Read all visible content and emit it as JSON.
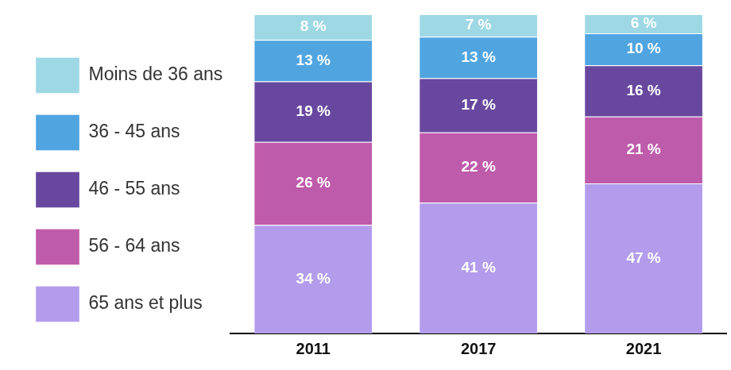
{
  "chart_data": {
    "type": "bar",
    "stacked": true,
    "data_labels": true,
    "legend": "left",
    "tick_labels": "x",
    "grid": false,
    "categories": [
      "2011",
      "2017",
      "2021"
    ],
    "ylim": [
      0,
      100
    ],
    "series": [
      {
        "name": "65 ans et plus",
        "color": "#b39cec",
        "values": [
          34,
          41,
          47
        ],
        "value_labels": [
          "34 %",
          "41 %",
          "47 %"
        ]
      },
      {
        "name": "56 - 64 ans",
        "color": "#bf5bab",
        "values": [
          26,
          22,
          21
        ],
        "value_labels": [
          "26 %",
          "22 %",
          "21 %"
        ]
      },
      {
        "name": "46 - 55 ans",
        "color": "#68489f",
        "values": [
          19,
          17,
          16
        ],
        "value_labels": [
          "19 %",
          "17 %",
          "16 %"
        ]
      },
      {
        "name": "36 - 45 ans",
        "color": "#50a5e1",
        "values": [
          13,
          13,
          10
        ],
        "value_labels": [
          "13 %",
          "13 %",
          "10 %"
        ]
      },
      {
        "name": "Moins de 36 ans",
        "color": "#9ed8e4",
        "values": [
          8,
          7,
          6
        ],
        "value_labels": [
          "8 %",
          "7 %",
          "6 %"
        ]
      }
    ]
  }
}
